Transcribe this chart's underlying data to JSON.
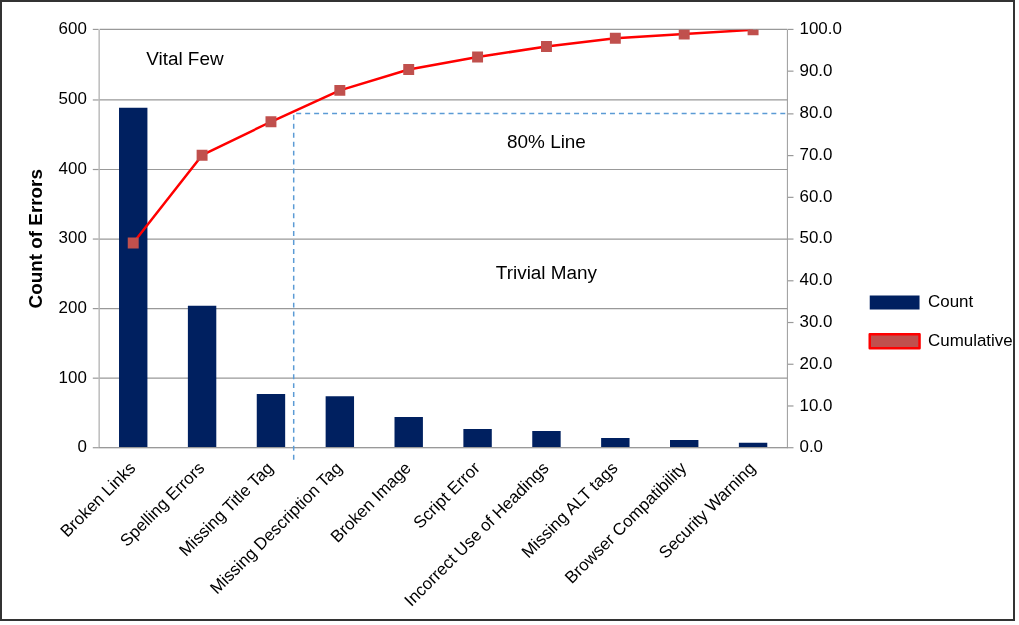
{
  "chart_data": {
    "type": "bar",
    "ylabel": "Count of Errors",
    "categories": [
      "Broken Links",
      "Spelling Errors",
      "Missing Title Tag",
      "Missing Description Tag",
      "Broken Image",
      "Script Error",
      "Incorrect Use of Headings",
      "Missing ALT tags",
      "Browser Compatibility",
      "Security Warning"
    ],
    "series": [
      {
        "name": "Count",
        "color": "#002060",
        "values": [
          488,
          204,
          77,
          74,
          44,
          27,
          24,
          14,
          11,
          7
        ]
      },
      {
        "name": "Cumulative",
        "type": "line",
        "axis": "y2",
        "color": "#ff0000",
        "marker": "square",
        "values": [
          49,
          70,
          78,
          85.5,
          90.5,
          93.5,
          96,
          98,
          99,
          100
        ]
      }
    ],
    "ylim": [
      0,
      600
    ],
    "yticks": [
      0,
      100,
      200,
      300,
      400,
      500,
      600
    ],
    "y2lim": [
      0,
      100
    ],
    "y2ticks": [
      {
        "value": 0,
        "label": "0.0"
      },
      {
        "value": 10,
        "label": "10.0"
      },
      {
        "value": 20,
        "label": "20.0"
      },
      {
        "value": 30,
        "label": "30.0"
      },
      {
        "value": 40,
        "label": "40.0"
      },
      {
        "value": 50,
        "label": "50.0"
      },
      {
        "value": 60,
        "label": "60.0"
      },
      {
        "value": 70,
        "label": "70.0"
      },
      {
        "value": 80,
        "label": "80.0"
      },
      {
        "value": 90,
        "label": "90.0"
      },
      {
        "value": 100,
        "label": "100.0"
      }
    ],
    "ref_lines": [
      {
        "axis": "y2",
        "value": 80,
        "color": "#5b9bd5",
        "line_style": "dashed"
      }
    ],
    "annotations": [
      "Vital Few",
      "80% Line",
      "Trivial Many"
    ],
    "grid": "y",
    "legend": "right"
  }
}
